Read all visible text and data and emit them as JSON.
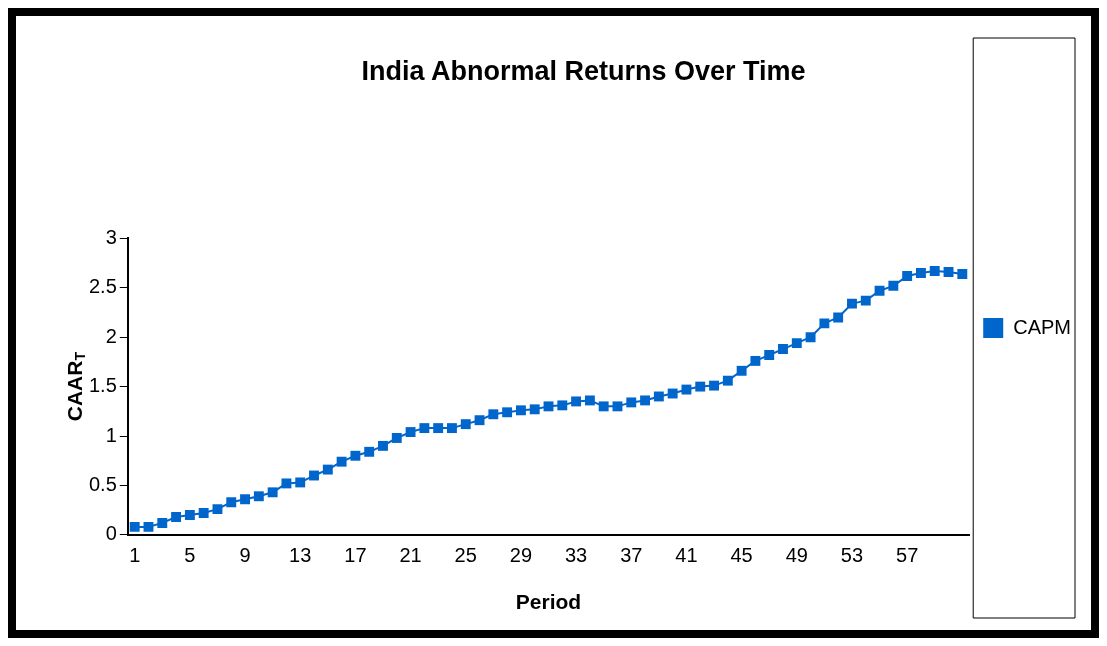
{
  "chart_data": {
    "type": "line",
    "title": "India Abnormal Returns Over Time",
    "xlabel": "Period",
    "ylabel": "CAAR$_{T}$",
    "categories": [
      "1",
      null,
      null,
      null,
      "5",
      null,
      null,
      null,
      "9",
      null,
      null,
      null,
      "13",
      null,
      null,
      null,
      "17",
      null,
      null,
      null,
      "21",
      null,
      null,
      null,
      "25",
      null,
      null,
      null,
      "29",
      null,
      null,
      null,
      "33",
      null,
      null,
      null,
      "37",
      null,
      null,
      null,
      "41",
      null,
      null,
      null,
      "45",
      null,
      null,
      null,
      "49",
      null,
      null,
      null,
      "53",
      null,
      null,
      null,
      "57",
      null,
      null,
      null,
      null
    ],
    "series": [
      {
        "name": "CAPM",
        "color": "#0066cc",
        "values": [
          0.08,
          0.08,
          0.12,
          0.18,
          0.2,
          0.22,
          0.26,
          0.33,
          0.36,
          0.39,
          0.43,
          0.52,
          0.53,
          0.6,
          0.66,
          0.74,
          0.8,
          0.84,
          0.9,
          0.98,
          1.04,
          1.08,
          1.08,
          1.08,
          1.12,
          1.16,
          1.22,
          1.24,
          1.26,
          1.27,
          1.3,
          1.31,
          1.35,
          1.36,
          1.3,
          1.3,
          1.34,
          1.36,
          1.4,
          1.43,
          1.47,
          1.5,
          1.51,
          1.56,
          1.66,
          1.76,
          1.82,
          1.88,
          1.94,
          2.0,
          2.14,
          2.2,
          2.34,
          2.37,
          2.47,
          2.52,
          2.62,
          2.65,
          2.67,
          2.66,
          2.64
        ]
      }
    ],
    "ylim": [
      0,
      3
    ],
    "yticks": [
      0,
      0.5,
      1,
      1.5,
      2,
      2.5,
      3
    ],
    "grid": false,
    "legend": "right",
    "marker": "square",
    "line_style": "solid"
  }
}
